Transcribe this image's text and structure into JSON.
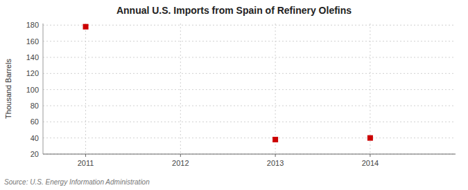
{
  "chart_data": {
    "type": "scatter",
    "title": "Annual U.S. Imports from Spain of Refinery Olefins",
    "ylabel": "Thousand Barrels",
    "source": "Source: U.S. Energy Information Administration",
    "x": [
      2011,
      2013,
      2014
    ],
    "values": [
      178,
      38,
      40
    ],
    "color": "#cc0000",
    "marker": "square",
    "xlim": [
      2010.55,
      2014.9
    ],
    "ylim": [
      20,
      182
    ],
    "xticks": [
      2011,
      2012,
      2013,
      2014
    ],
    "yticks": [
      20,
      40,
      60,
      80,
      100,
      120,
      140,
      160,
      180
    ],
    "grid": true
  }
}
